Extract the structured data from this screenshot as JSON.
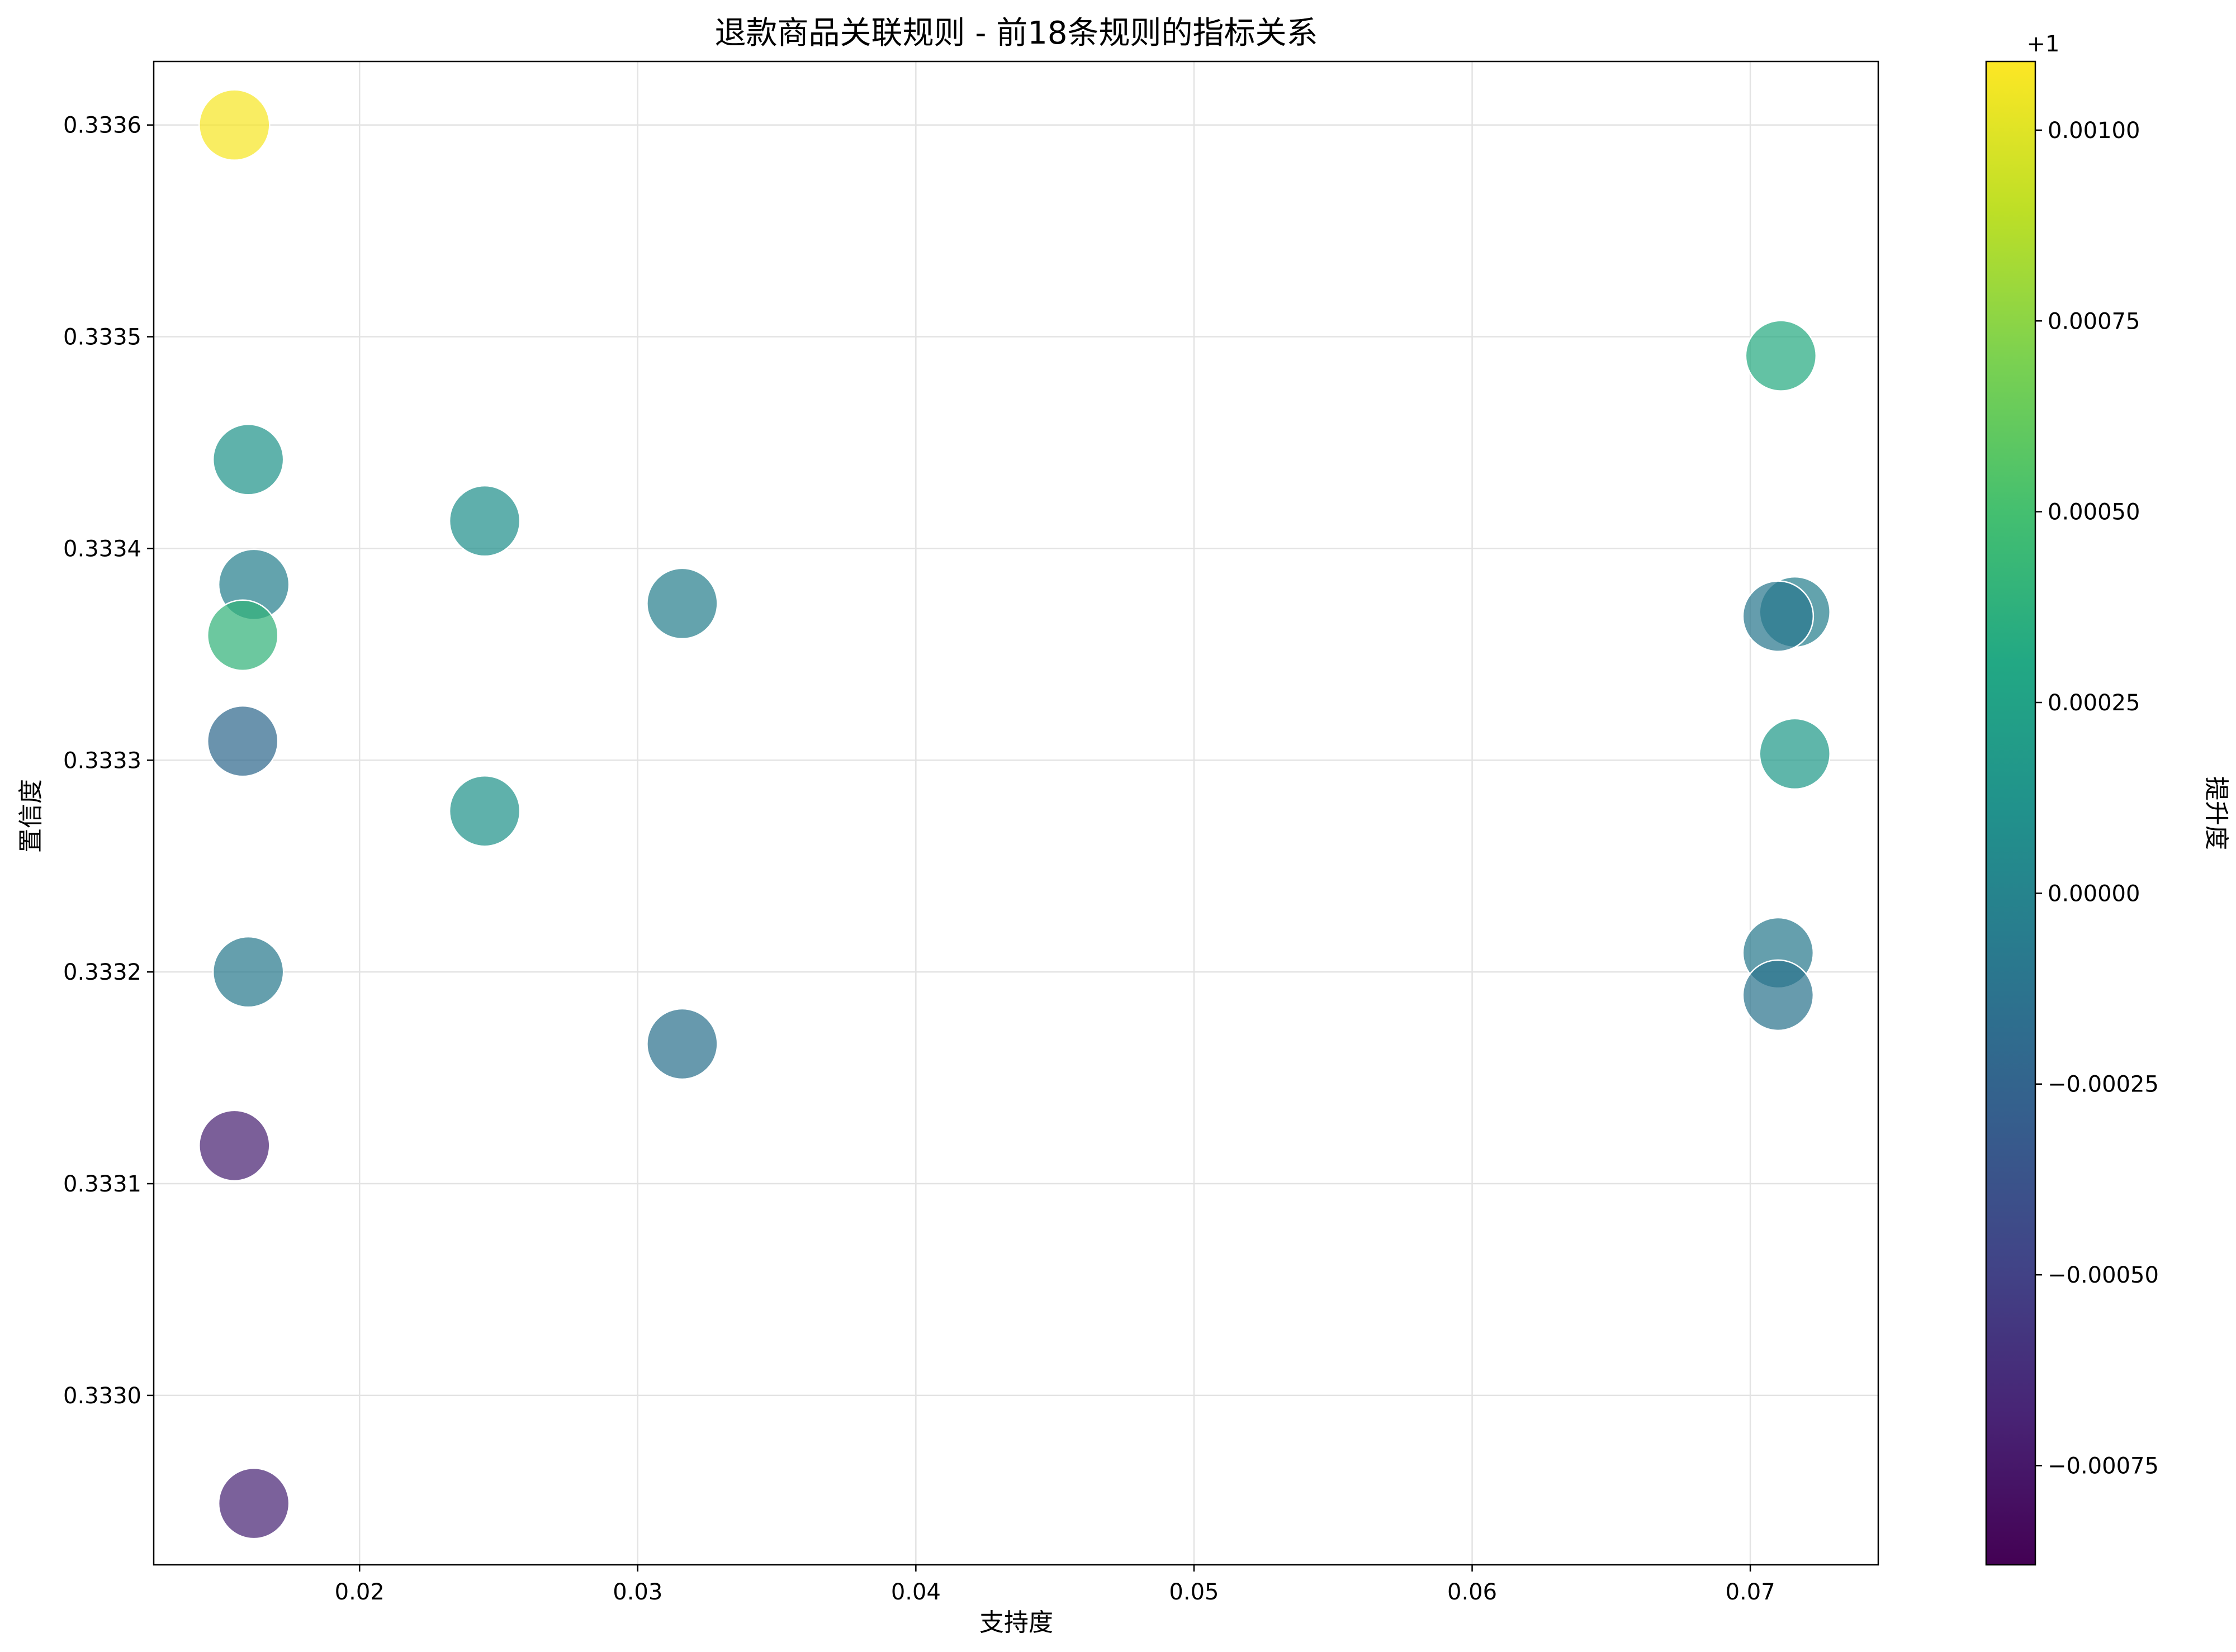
{
  "chart_data": {
    "type": "scatter",
    "title": "退款商品关联规则 - 前18条规则的指标关系",
    "xlabel": "支持度",
    "ylabel": "置信度",
    "xlim": [
      0.0126,
      0.0746
    ],
    "ylim": [
      0.33292,
      0.33363
    ],
    "xticks": [
      0.02,
      0.03,
      0.04,
      0.05,
      0.06,
      0.07
    ],
    "xtick_labels": [
      "0.02",
      "0.03",
      "0.04",
      "0.05",
      "0.06",
      "0.07"
    ],
    "yticks": [
      0.333,
      0.3331,
      0.3332,
      0.3333,
      0.3334,
      0.3335,
      0.3336
    ],
    "ytick_labels": [
      "0.3330",
      "0.3331",
      "0.3332",
      "0.3333",
      "0.3334",
      "0.3335",
      "0.3336"
    ],
    "grid": true,
    "colorbar": {
      "label": "提升度",
      "offset_label": "+1",
      "colormap": "viridis",
      "range": [
        -0.00088,
        0.00109
      ],
      "ticks": [
        -0.00075,
        -0.0005,
        -0.00025,
        0.0,
        0.00025,
        0.0005,
        0.00075,
        0.001
      ],
      "tick_labels": [
        "−0.00075",
        "−0.00050",
        "−0.00025",
        "0.00000",
        "0.00025",
        "0.00050",
        "0.00075",
        "0.00100"
      ]
    },
    "points": [
      {
        "x": 0.0155,
        "y": 0.3336,
        "lift_offset": 0.00107
      },
      {
        "x": 0.016,
        "y": 0.333442,
        "lift_offset": 0.00013
      },
      {
        "x": 0.0162,
        "y": 0.333383,
        "lift_offset": -3e-05
      },
      {
        "x": 0.0158,
        "y": 0.333359,
        "lift_offset": 0.0004
      },
      {
        "x": 0.0158,
        "y": 0.333309,
        "lift_offset": -0.0002
      },
      {
        "x": 0.016,
        "y": 0.3332,
        "lift_offset": -8e-05
      },
      {
        "x": 0.0155,
        "y": 0.333118,
        "lift_offset": -0.0007
      },
      {
        "x": 0.0162,
        "y": 0.332949,
        "lift_offset": -0.00068
      },
      {
        "x": 0.0245,
        "y": 0.333413,
        "lift_offset": 0.0001
      },
      {
        "x": 0.0245,
        "y": 0.333276,
        "lift_offset": 0.00012
      },
      {
        "x": 0.0316,
        "y": 0.333374,
        "lift_offset": -4e-05
      },
      {
        "x": 0.0316,
        "y": 0.333166,
        "lift_offset": -0.00015
      },
      {
        "x": 0.0711,
        "y": 0.333491,
        "lift_offset": 0.00033
      },
      {
        "x": 0.0716,
        "y": 0.33337,
        "lift_offset": -3e-05
      },
      {
        "x": 0.071,
        "y": 0.333368,
        "lift_offset": -0.0001
      },
      {
        "x": 0.0716,
        "y": 0.333303,
        "lift_offset": 0.00018
      },
      {
        "x": 0.071,
        "y": 0.333209,
        "lift_offset": -8e-05
      },
      {
        "x": 0.071,
        "y": 0.333189,
        "lift_offset": -0.00012
      }
    ]
  }
}
